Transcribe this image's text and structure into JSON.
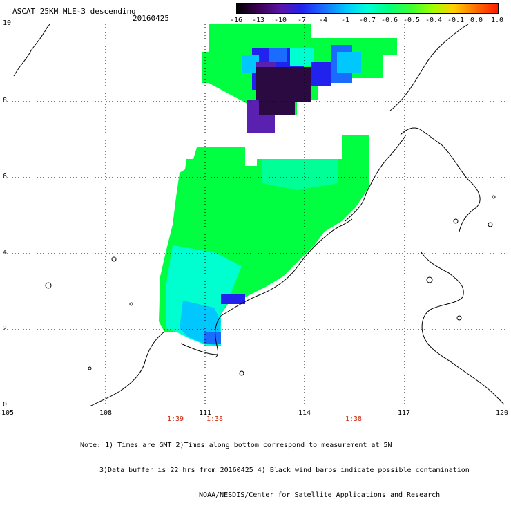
{
  "title": "ASCAT 25KM MLE-3 descending",
  "date": "20160425",
  "colorbar": {
    "labels": [
      "-16",
      "-13",
      "-10",
      "-7",
      "-4",
      "-1",
      "-0.7",
      "-0.6",
      "-0.5",
      "-0.4",
      "-0.1",
      "0.0",
      "1.0"
    ],
    "colors": [
      "#000000",
      "#3a0050",
      "#5a14a8",
      "#2222ee",
      "#1a6cff",
      "#00c8ff",
      "#00ffd8",
      "#00ff80",
      "#40ff30",
      "#a0ff00",
      "#ffd000",
      "#ff6a00",
      "#ff1a00"
    ]
  },
  "axes": {
    "lon_labels": [
      "105",
      "108",
      "111",
      "114",
      "117",
      "120"
    ],
    "lat_labels": [
      "0",
      "2",
      "4",
      "6",
      "8",
      "10"
    ]
  },
  "time_labels": [
    "1:39",
    "1:38",
    "1:38"
  ],
  "colors": {
    "land_line": "#000000",
    "grid": "#000000",
    "green": "#00ff40",
    "cyan": "#00ffd0",
    "blue": "#2222ee",
    "deep_purple": "#2a0a40",
    "purple": "#5a20b0"
  },
  "note": {
    "line1": "Note: 1) Times are GMT 2)Times along bottom correspond to measurement at 5N",
    "line2": "3)Data buffer is 22 hrs from 20160425 4) Black wind barbs indicate possible contamination",
    "line3": "NOAA/NESDIS/Center for Satellite Applications and Research"
  }
}
